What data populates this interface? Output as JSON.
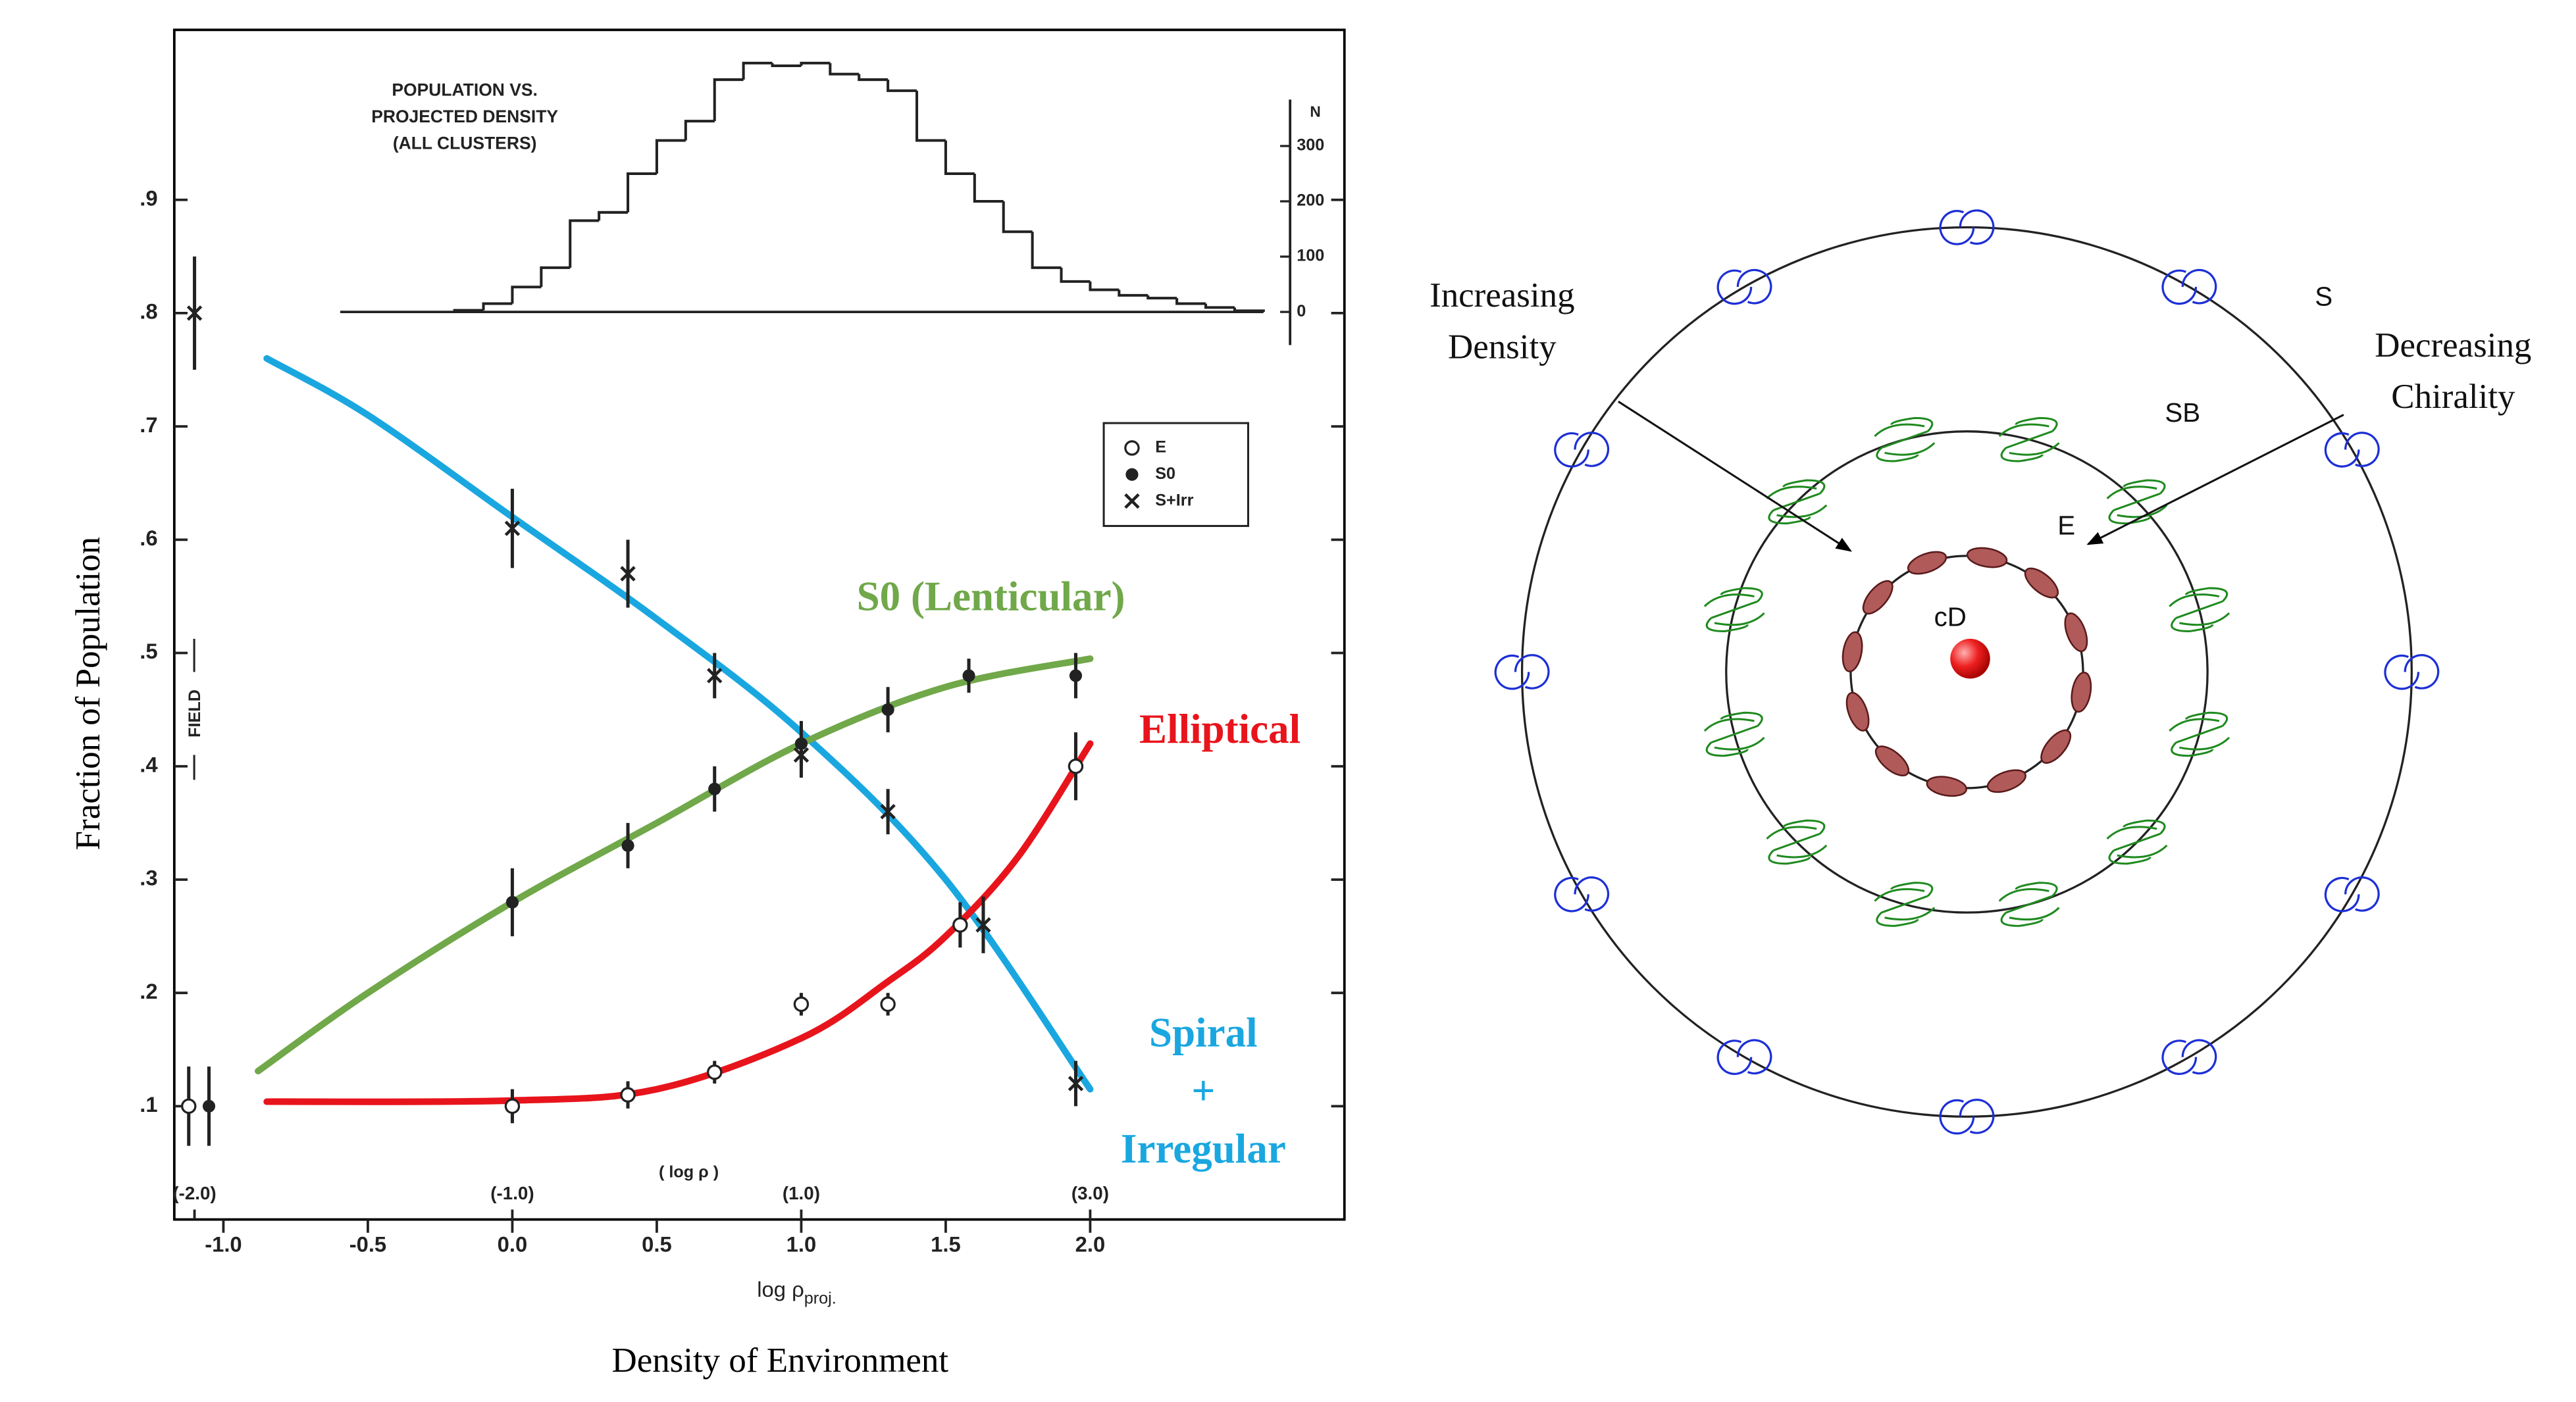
{
  "chart_data": [
    {
      "type": "line",
      "ylabel": "Fraction of Population",
      "caption": "Density of Environment",
      "xlabel": {
        "text": "log ρ",
        "subscript": "proj."
      },
      "xlim": [
        -1.17,
        2.88
      ],
      "ylim": [
        0,
        1.05
      ],
      "xticks": [
        {
          "value": -1,
          "label": "-1.0"
        },
        -0.5,
        {
          "value": 0,
          "label": "0.0"
        },
        0.5,
        {
          "value": 1,
          "label": "1.0"
        },
        1.5,
        {
          "value": 2,
          "label": "2.0"
        }
      ],
      "yticks": [
        {
          "value": 0.1,
          "label": ".1"
        },
        {
          "value": 0.2,
          "label": ".2"
        },
        {
          "value": 0.3,
          "label": ".3"
        },
        {
          "value": 0.4,
          "label": ".4"
        },
        {
          "value": 0.5,
          "label": ".5"
        },
        {
          "value": 0.6,
          "label": ".6"
        },
        {
          "value": 0.7,
          "label": ".7"
        },
        {
          "value": 0.8,
          "label": ".8"
        },
        {
          "value": 0.9,
          "label": ".9"
        }
      ],
      "x2label": "( log ρ )",
      "x2ticks": [
        {
          "value": -1.1,
          "label": "(-2.0)"
        },
        {
          "value": 0,
          "label": "(-1.0)"
        },
        {
          "value": 1,
          "label": "(1.0)"
        },
        {
          "value": 2,
          "label": "(3.0)"
        }
      ],
      "field_label": "FIELD",
      "series": [
        {
          "name": [
            "Spiral",
            "+",
            "Irregular"
          ],
          "color": "#1aa7e0",
          "x": [
            -0.85,
            -0.5,
            0,
            0.5,
            1.0,
            1.5,
            2.0
          ],
          "values": [
            0.76,
            0.71,
            0.62,
            0.53,
            0.43,
            0.3,
            0.115
          ]
        },
        {
          "name": [
            "S0 (Lenticular)"
          ],
          "color": "#70a84a",
          "x": [
            -0.88,
            -0.5,
            0,
            0.5,
            1.0,
            1.5,
            2.0
          ],
          "values": [
            0.131,
            0.2,
            0.28,
            0.35,
            0.42,
            0.47,
            0.495
          ]
        },
        {
          "name": [
            "Elliptical"
          ],
          "color": "#e8141c",
          "x": [
            -0.85,
            0,
            0.5,
            1.0,
            1.3,
            1.5,
            1.75,
            2.0
          ],
          "values": [
            0.104,
            0.105,
            0.115,
            0.16,
            0.21,
            0.25,
            0.32,
            0.42
          ]
        }
      ],
      "points": [
        {
          "name": "E",
          "marker": "open-circle",
          "x": [
            -1.12,
            0,
            0.4,
            0.7,
            1.0,
            1.3,
            1.55,
            1.95
          ],
          "values": [
            0.1,
            0.1,
            0.11,
            0.13,
            0.19,
            0.19,
            0.26,
            0.4
          ],
          "errors": [
            0.035,
            0.015,
            0.012,
            0.01,
            0.01,
            0.01,
            0.02,
            0.03
          ]
        },
        {
          "name": "S0",
          "marker": "filled-circle",
          "x": [
            -1.05,
            0,
            0.4,
            0.7,
            1.0,
            1.3,
            1.58,
            1.95
          ],
          "values": [
            0.1,
            0.28,
            0.33,
            0.38,
            0.42,
            0.45,
            0.48,
            0.48
          ],
          "errors": [
            0.035,
            0.03,
            0.02,
            0.02,
            0.02,
            0.02,
            0.015,
            0.02
          ]
        },
        {
          "name": "S+Irr",
          "marker": "cross",
          "x": [
            -1.1,
            0,
            0.4,
            0.7,
            1.0,
            1.3,
            1.63,
            1.95
          ],
          "values": [
            0.8,
            0.61,
            0.57,
            0.48,
            0.41,
            0.36,
            0.26,
            0.12
          ],
          "errors": [
            0.05,
            0.035,
            0.03,
            0.02,
            0.02,
            0.02,
            0.025,
            0.02
          ]
        }
      ]
    },
    {
      "type": "histogram",
      "title": [
        "POPULATION VS.",
        "PROJECTED DENSITY",
        "(ALL CLUSTERS)"
      ],
      "ylabel": "N",
      "xlim": [
        -1.17,
        2.88
      ],
      "ylim": [
        0,
        450
      ],
      "yticks": [
        0,
        100,
        200,
        300
      ],
      "bins": [
        -0.2,
        -0.1,
        0,
        0.1,
        0.2,
        0.3,
        0.4,
        0.5,
        0.6,
        0.7,
        0.8,
        0.9,
        1.0,
        1.1,
        1.2,
        1.3,
        1.4,
        1.5,
        1.6,
        1.7,
        1.8,
        1.9,
        2.0,
        2.1,
        2.2,
        2.3,
        2.4,
        2.5,
        2.6
      ],
      "values": [
        3,
        15,
        45,
        80,
        165,
        180,
        250,
        310,
        345,
        420,
        450,
        445,
        450,
        430,
        420,
        400,
        310,
        250,
        200,
        145,
        80,
        55,
        40,
        30,
        25,
        15,
        8,
        2
      ]
    }
  ],
  "diagram": {
    "annotations": [
      [
        "Increasing",
        "Density"
      ],
      [
        "Decreasing",
        "Chirality"
      ]
    ],
    "rings": [
      "S",
      "SB",
      "E",
      "cD"
    ]
  }
}
